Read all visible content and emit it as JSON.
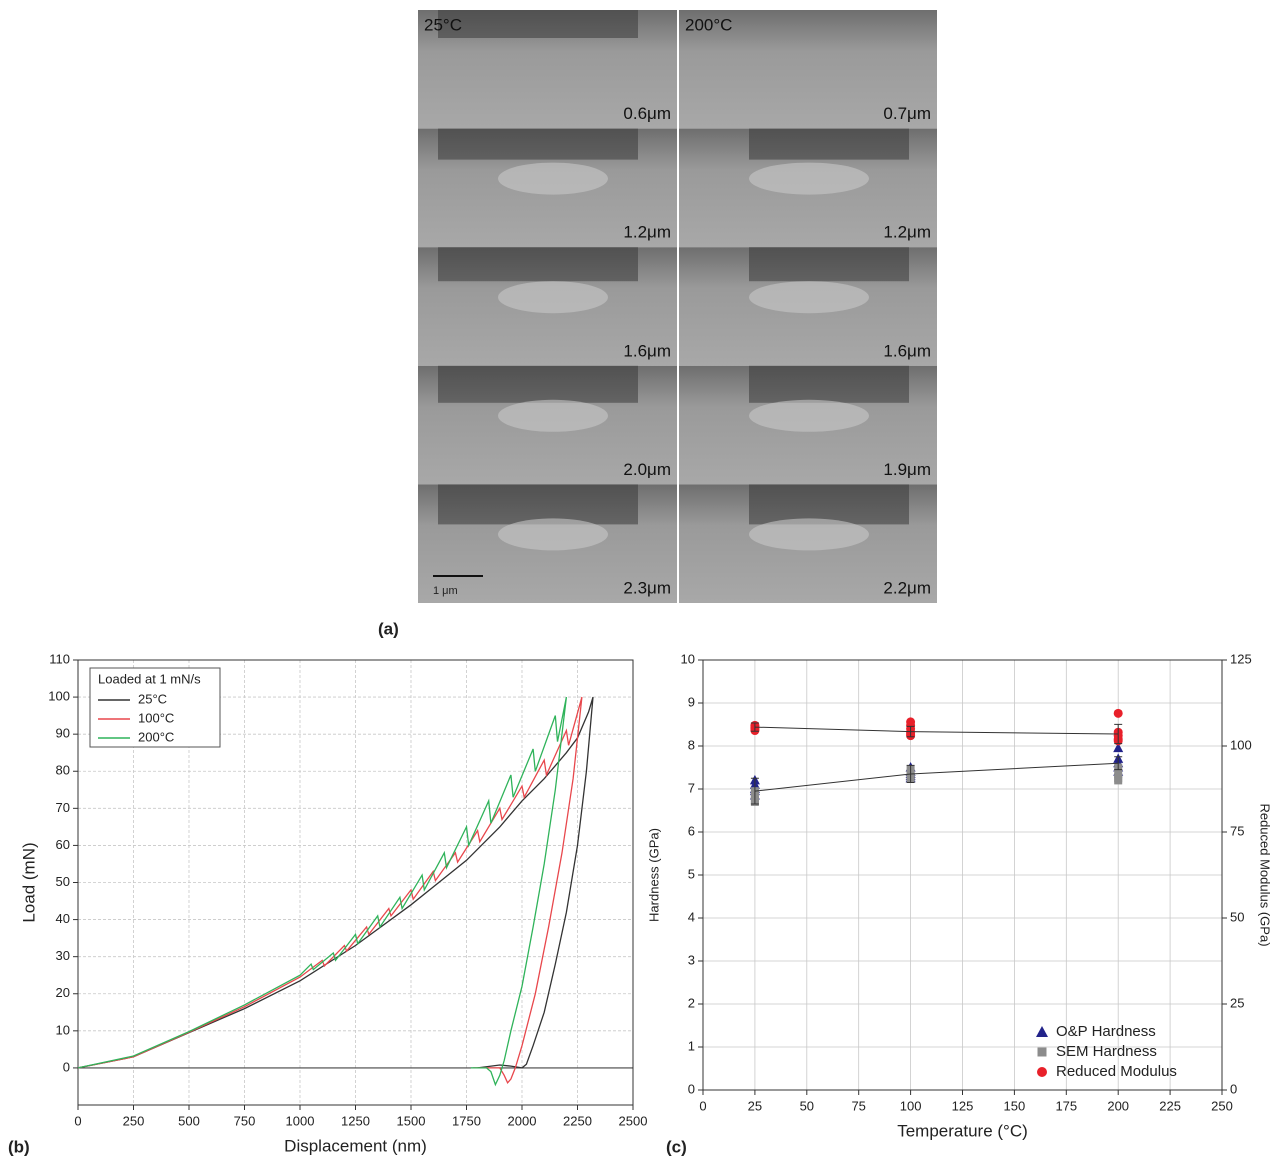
{
  "panel_a": {
    "label": "(a)",
    "scale_bar": "1 μm",
    "columns": [
      {
        "title": "25°C",
        "depths": [
          "0.6μm",
          "1.2μm",
          "1.6μm",
          "2.0μm",
          "2.3μm"
        ]
      },
      {
        "title": "200°C",
        "depths": [
          "0.7μm",
          "1.2μm",
          "1.6μm",
          "1.9μm",
          "2.2μm"
        ]
      }
    ]
  },
  "chart_data": [
    {
      "type": "line",
      "panel_label": "(b)",
      "x_label": "Displacement (nm)",
      "y_label": "Load (mN)",
      "xlim": [
        0,
        2500
      ],
      "xticks": [
        0,
        250,
        500,
        750,
        1000,
        1250,
        1500,
        1750,
        2000,
        2250,
        2500
      ],
      "ylim": [
        -10,
        110
      ],
      "yticks": [
        0,
        10,
        20,
        30,
        40,
        50,
        60,
        70,
        80,
        90,
        100,
        110
      ],
      "grid": true,
      "legend": "top-left",
      "legend_title": "Loaded at 1 mN/s",
      "series": [
        {
          "name": "25°C",
          "color": "#333333",
          "x": [
            0,
            250,
            500,
            750,
            1000,
            1250,
            1500,
            1750,
            1900,
            2000,
            2100,
            2200,
            2250,
            2300,
            2320,
            2290,
            2250,
            2200,
            2150,
            2100,
            2050,
            2020,
            2000,
            1950,
            1900,
            1800
          ],
          "values": [
            0,
            3,
            9.5,
            16,
            23.5,
            33,
            44,
            56,
            65,
            72,
            78,
            85,
            89,
            96,
            100,
            80,
            60,
            42,
            28,
            15,
            6,
            1,
            0,
            0.5,
            0.8,
            0
          ]
        },
        {
          "name": "100°C",
          "color": "#e8474c",
          "x": [
            0,
            250,
            500,
            750,
            1000,
            1100,
            1110,
            1200,
            1210,
            1300,
            1310,
            1400,
            1410,
            1500,
            1510,
            1600,
            1610,
            1700,
            1710,
            1800,
            1810,
            1900,
            1910,
            2000,
            2010,
            2100,
            2110,
            2200,
            2210,
            2270,
            2230,
            2180,
            2120,
            2060,
            2000,
            1970,
            1950,
            1935,
            1920,
            1900,
            1780
          ],
          "values": [
            0,
            3,
            9.6,
            16.5,
            24.5,
            29,
            27.5,
            33,
            31.5,
            38,
            36,
            43,
            41,
            48,
            45.5,
            53,
            50.5,
            58,
            55.5,
            64,
            61,
            70,
            67,
            76,
            73,
            83,
            79,
            91,
            87,
            100,
            78,
            58,
            38,
            20,
            6,
            0,
            -3,
            -4,
            -2,
            0,
            0
          ]
        },
        {
          "name": "200°C",
          "color": "#2fb35a",
          "x": [
            0,
            250,
            500,
            750,
            1000,
            1050,
            1060,
            1150,
            1160,
            1250,
            1260,
            1350,
            1360,
            1450,
            1460,
            1550,
            1560,
            1650,
            1660,
            1750,
            1760,
            1850,
            1860,
            1950,
            1960,
            2050,
            2060,
            2150,
            2160,
            2200,
            2150,
            2100,
            2050,
            2000,
            1950,
            1920,
            1900,
            1880,
            1860,
            1840,
            1770
          ],
          "values": [
            0,
            3.2,
            9.8,
            17,
            25,
            28,
            26.5,
            31,
            29,
            36,
            33.5,
            41,
            38,
            46,
            43,
            52,
            48,
            58,
            54,
            65,
            60,
            72,
            66,
            79,
            73,
            86,
            80,
            95,
            88,
            100,
            75,
            55,
            38,
            22,
            10,
            2,
            -2,
            -4.5,
            -1,
            0,
            0
          ]
        }
      ]
    },
    {
      "type": "scatter",
      "panel_label": "(c)",
      "x_label": "Temperature (°C)",
      "y_label": "Hardness (GPa)",
      "y2_label": "Reduced Modulus (GPa)",
      "xlim": [
        0,
        250
      ],
      "xticks": [
        0,
        25,
        50,
        75,
        100,
        125,
        150,
        175,
        200,
        225,
        250
      ],
      "ylim": [
        0,
        10
      ],
      "yticks": [
        0,
        1,
        2,
        3,
        4,
        5,
        6,
        7,
        8,
        9,
        10
      ],
      "y2lim": [
        0,
        125
      ],
      "y2ticks": [
        0,
        25,
        50,
        75,
        100,
        125
      ],
      "grid": true,
      "legend": "bottom-right",
      "series": [
        {
          "name": "O&P Hardness",
          "color": "#22238a",
          "marker": "triangle",
          "x": [
            25,
            25,
            25,
            25,
            25,
            100,
            100,
            100,
            100,
            100,
            200,
            200,
            200,
            200,
            200
          ],
          "values": [
            7.2,
            7.1,
            7,
            6.95,
            6.85,
            7.5,
            7.4,
            7.35,
            7.3,
            7.25,
            7.95,
            7.7,
            7.6,
            7.5,
            7.4
          ]
        },
        {
          "name": "SEM Hardness",
          "color": "#8c8c8c",
          "marker": "square",
          "x": [
            25,
            25,
            25,
            25,
            100,
            100,
            100,
            100,
            200,
            200,
            200,
            200
          ],
          "values": [
            6.95,
            6.85,
            6.75,
            6.7,
            7.45,
            7.35,
            7.3,
            7.25,
            7.5,
            7.35,
            7.25,
            7.2
          ]
        },
        {
          "name": "Reduced Modulus",
          "color": "#e8202a",
          "marker": "circle",
          "axis": "y2",
          "x": [
            25,
            25,
            25,
            25,
            100,
            100,
            100,
            100,
            100,
            100,
            200,
            200,
            200,
            200,
            200
          ],
          "values": [
            106,
            105.5,
            105,
            104.5,
            107,
            106,
            105,
            104,
            103.5,
            103,
            109.5,
            104,
            103,
            102,
            101.5
          ]
        },
        {
          "mode": "line",
          "color": "#333333",
          "x": [
            25,
            100,
            200
          ],
          "values": [
            6.95,
            7.35,
            7.6
          ],
          "errors": [
            0.3,
            0.2,
            0.15
          ]
        },
        {
          "mode": "line",
          "color": "#333333",
          "axis": "y2",
          "x": [
            25,
            100,
            200
          ],
          "values": [
            105.5,
            104.2,
            103.5
          ],
          "errors": [
            1.2,
            1.5,
            2.8
          ]
        }
      ]
    }
  ]
}
